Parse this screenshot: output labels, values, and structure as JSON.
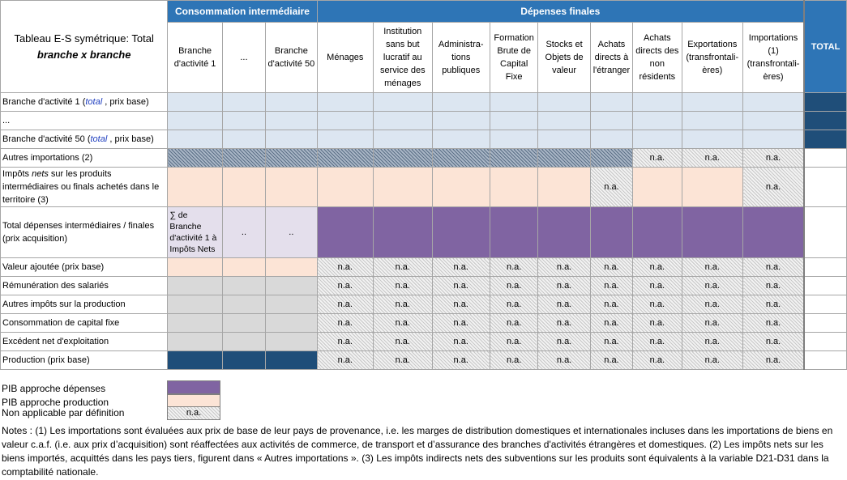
{
  "title": {
    "line1": "Tableau E-S symétrique: Total",
    "line2": "branche x branche"
  },
  "groups": {
    "intermediate": "Consommation intermédiaire",
    "final": "Dépenses finales",
    "total": "TOTAL"
  },
  "col_headers": [
    "Branche d'activité 1",
    "...",
    "Branche d'activité 50",
    "Ménages",
    "Institution sans but lucratif au service des ménages",
    "Administra-tions publiques",
    "Formation Brute de Capital Fixe",
    "Stocks et Objets de valeur",
    "Achats directs à l'étranger",
    "Achats directs des non résidents",
    "Exportations (transfrontali-ères)",
    "Importations (1) (transfrontali-ères)"
  ],
  "rows": {
    "r1": {
      "pre": "Branche d'activité 1 (",
      "it": "total",
      "post": " , prix base)"
    },
    "r2": "...",
    "r3": {
      "pre": "Branche d'activité 50 (",
      "it": "total",
      "post": " , prix base)"
    },
    "r4": "Autres importations (2)",
    "r5": {
      "pre": "Impôts ",
      "it": "nets",
      "post": "  sur les produits intermédiaires ou finals achetés dans le territoire (3)"
    },
    "r6": "Total dépenses intermédiaires / finales (prix acquisition)",
    "r7": "Valeur ajoutée (prix base)",
    "r8": "Rémunération des salariés",
    "r9": "Autres impôts sur la production",
    "r10": "Consommation de capital fixe",
    "r11": "Excédent net d'exploitation",
    "r12": "Production (prix base)"
  },
  "cells": {
    "na": "n.a.",
    "sum": "∑ de Branche d'activité 1 à Impôts Nets",
    "dots": ".."
  },
  "legend": {
    "gdp_exp": "PIB approche dépenses",
    "gdp_prod": "PIB approche production",
    "not_applicable": "Non applicable par définition",
    "na_sample": "n.a."
  },
  "colors": {
    "purple": "#8064a2",
    "peach": "#fce4d6",
    "blue": "#2e75b6",
    "dark_blue": "#1f4e79",
    "light_blue": "#dce6f1"
  },
  "notes": "Notes : (1) Les importations sont évaluées aux prix de base de leur pays de provenance, i.e.  les marges de distribution domestiques et internationales incluses dans les importations de biens en valeur c.a.f. (i.e. aux prix d’acquisition) sont réaffectées aux activités de commerce, de transport et d’assurance des branches d'activités étrangères et domestiques. (2) Les impôts nets sur les biens importés, acquittés dans les pays tiers, figurent dans « Autres importations ». (3) Les impôts indirects nets des subventions sur les produits sont équivalents à la variable D21-D31 dans la comptabilité nationale."
}
